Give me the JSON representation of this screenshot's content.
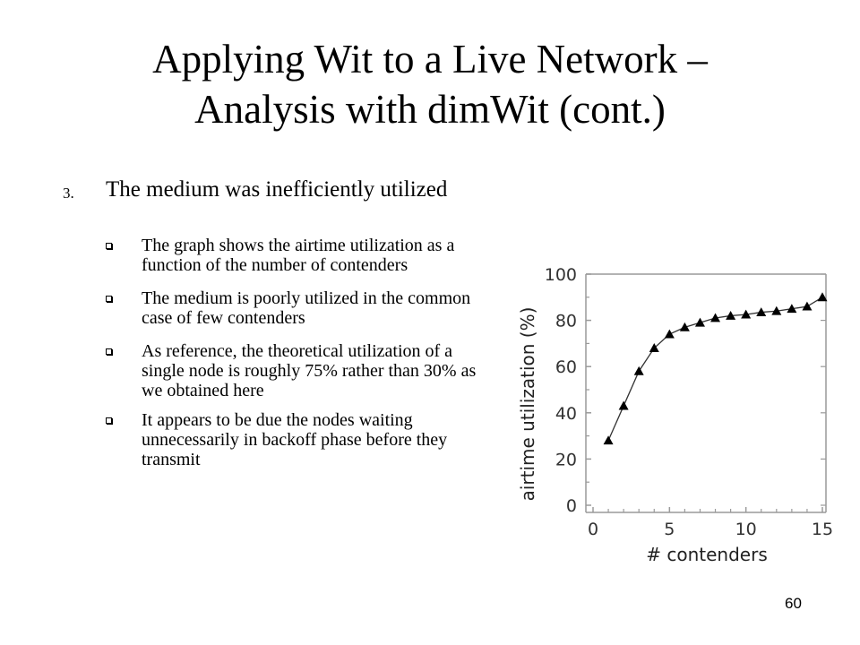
{
  "title": {
    "line1": "Applying Wit to a Live Network –",
    "line2": "Analysis with dimWit (cont.)"
  },
  "main_point": {
    "number": "3.",
    "text": "The medium was inefficiently utilized"
  },
  "sub_points": [
    "The graph shows the airtime utilization as a function of the number of contenders",
    "The medium is poorly utilized in the common case of few contenders",
    "As reference, the theoretical utilization of a single node is roughly 75% rather than 30% as we obtained here",
    "It appears to be due the nodes waiting unnecessarily in backoff phase before they transmit"
  ],
  "page_number": "60",
  "chart_data": {
    "type": "line",
    "xlabel": "# contenders",
    "ylabel": "airtime utilization (%)",
    "xlim": [
      0,
      15
    ],
    "ylim": [
      0,
      100
    ],
    "x_ticks": [
      0,
      5,
      10,
      15
    ],
    "y_ticks": [
      0,
      20,
      40,
      60,
      80,
      100
    ],
    "marker": "triangle",
    "color": "#000000",
    "series": [
      {
        "x": [
          1,
          2,
          3,
          4,
          5,
          6,
          7,
          8,
          9,
          10,
          11,
          12,
          13,
          14,
          15
        ],
        "y": [
          28,
          43,
          58,
          68,
          74,
          77,
          79,
          81,
          82,
          82.5,
          83.5,
          84,
          85,
          86,
          90
        ]
      }
    ]
  }
}
